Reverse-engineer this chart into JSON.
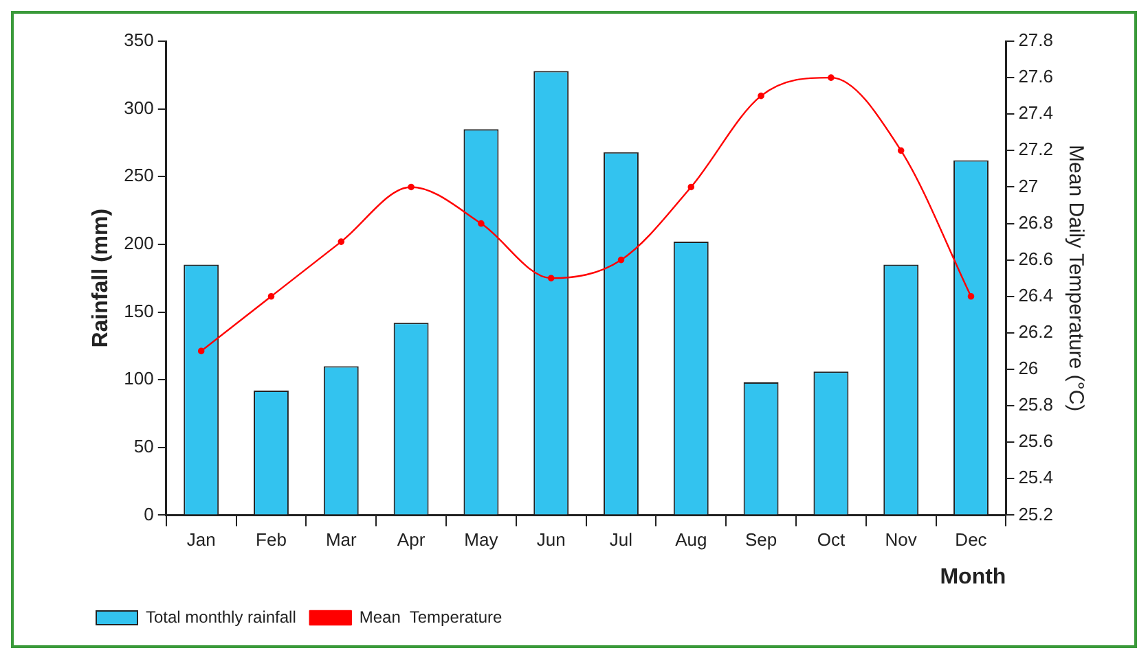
{
  "chart_data": {
    "type": "bar",
    "xlabel": "Month",
    "ylabel": "Rainfall (mm)",
    "y2label": "Mean Daily Temperature (°C)",
    "categories": [
      "Jan",
      "Feb",
      "Mar",
      "Apr",
      "May",
      "Jun",
      "Jul",
      "Aug",
      "Sep",
      "Oct",
      "Nov",
      "Dec"
    ],
    "series": [
      {
        "name": "Total monthly rainfall",
        "color": "#33c3ef",
        "values": [
          185,
          92,
          110,
          142,
          285,
          328,
          268,
          202,
          98,
          106,
          185,
          262
        ]
      },
      {
        "name": "Mean  Temperature",
        "type": "line",
        "axis": "y2",
        "color": "#ff0000",
        "values": [
          26.1,
          26.4,
          26.7,
          27.0,
          26.8,
          26.5,
          26.6,
          27.0,
          27.5,
          27.6,
          27.2,
          26.4
        ]
      }
    ],
    "ylim": [
      0,
      350
    ],
    "yticks": [
      0,
      50,
      100,
      150,
      200,
      250,
      300,
      350
    ],
    "y2lim": [
      25.2,
      27.8
    ],
    "y2ticks": [
      25.2,
      25.4,
      25.6,
      25.8,
      26,
      26.2,
      26.4,
      26.6,
      26.8,
      27,
      27.2,
      27.4,
      27.6,
      27.8
    ],
    "grid": false,
    "legend": "bottom left",
    "marker": "circle",
    "line_style": "solid"
  }
}
